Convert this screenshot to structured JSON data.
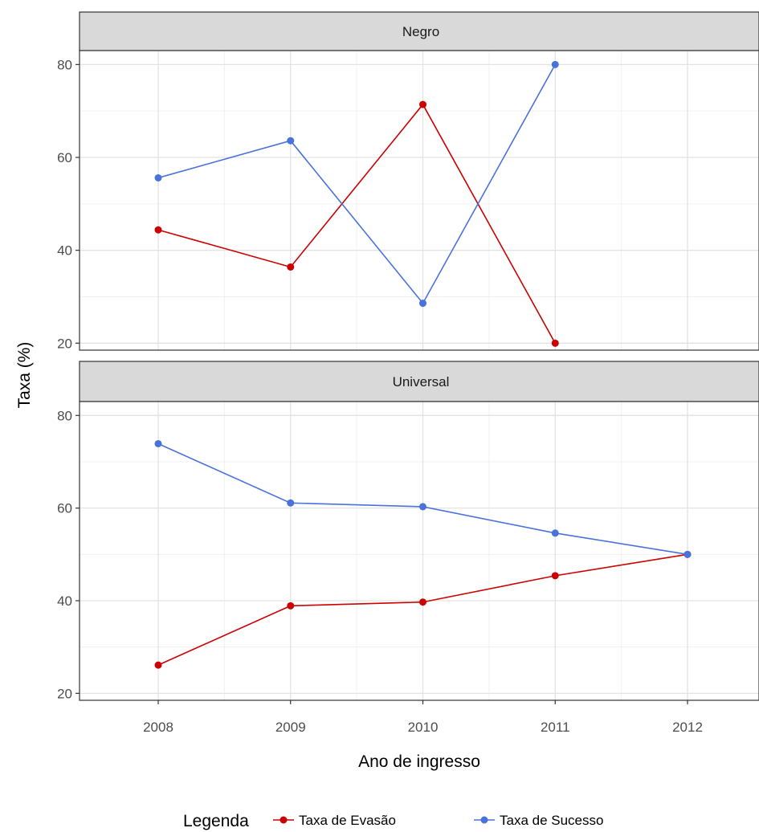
{
  "chart_data": {
    "type": "line",
    "x": [
      2008,
      2009,
      2010,
      2011,
      2012
    ],
    "xlabel": "Ano de ingresso",
    "ylabel": "Taxa (%)",
    "yticks": [
      20,
      40,
      60,
      80
    ],
    "grid": true,
    "legend": {
      "title": "Legenda",
      "position": "bottom",
      "entries": [
        "Taxa de Evasão",
        "Taxa de Sucesso"
      ]
    },
    "colors": {
      "Taxa de Evasão": "#cc0000",
      "Taxa de Sucesso": "#4a72db"
    },
    "panels": [
      {
        "label": "Negro",
        "ylim": [
          18.5,
          83
        ],
        "series": [
          {
            "name": "Taxa de Evasão",
            "x": [
              2008,
              2009,
              2010,
              2011
            ],
            "values": [
              44.4,
              36.4,
              71.4,
              20.0
            ]
          },
          {
            "name": "Taxa de Sucesso",
            "x": [
              2008,
              2009,
              2010,
              2011
            ],
            "values": [
              55.6,
              63.6,
              28.6,
              80.0
            ]
          }
        ]
      },
      {
        "label": "Universal",
        "ylim": [
          18.5,
          83
        ],
        "series": [
          {
            "name": "Taxa de Evasão",
            "x": [
              2008,
              2009,
              2010,
              2011,
              2012
            ],
            "values": [
              26.1,
              38.9,
              39.7,
              45.4,
              50.0
            ]
          },
          {
            "name": "Taxa de Sucesso",
            "x": [
              2008,
              2009,
              2010,
              2011,
              2012
            ],
            "values": [
              73.9,
              61.1,
              60.3,
              54.6,
              50.0
            ]
          }
        ]
      }
    ]
  }
}
